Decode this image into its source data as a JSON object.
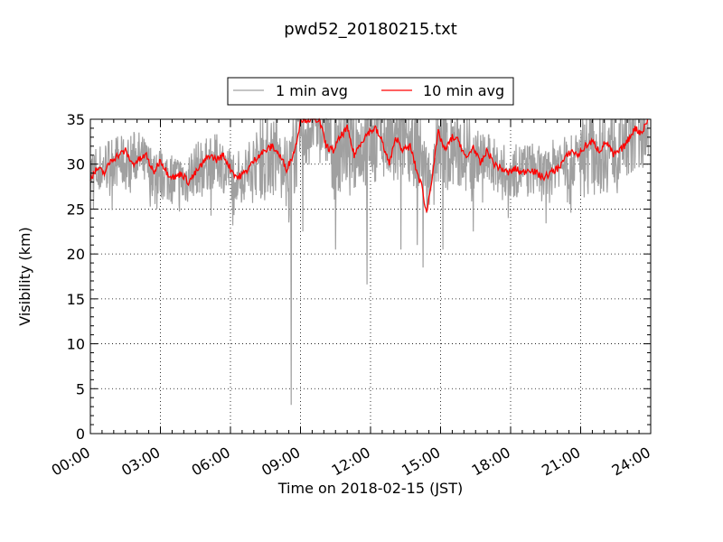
{
  "chart_data": {
    "type": "line",
    "title": "pwd52_20180215.txt",
    "xlabel": "Time on 2018-02-15 (JST)",
    "ylabel": "Visibility (km)",
    "x_unit": "hours",
    "xlim": [
      0,
      24
    ],
    "ylim": [
      0,
      35
    ],
    "x_ticks": [
      0,
      3,
      6,
      9,
      12,
      15,
      18,
      21,
      24
    ],
    "x_tick_labels": [
      "00:00",
      "03:00",
      "06:00",
      "09:00",
      "12:00",
      "15:00",
      "18:00",
      "21:00",
      "24:00"
    ],
    "y_ticks": [
      0,
      5,
      10,
      15,
      20,
      25,
      30,
      35
    ],
    "y_tick_labels": [
      "0",
      "5",
      "10",
      "15",
      "20",
      "25",
      "30",
      "35"
    ],
    "grid": true,
    "grid_style": "dotted",
    "legend_position": "top-center",
    "series": [
      {
        "name": "1 min avg",
        "color": "#a0a0a0",
        "style": "noisy",
        "x": [
          0.0,
          0.5,
          1.0,
          1.5,
          2.0,
          2.5,
          3.0,
          3.5,
          4.0,
          4.5,
          5.0,
          5.5,
          6.0,
          6.5,
          7.0,
          7.5,
          8.0,
          8.5,
          9.0,
          9.5,
          10.0,
          10.5,
          11.0,
          11.5,
          12.0,
          12.5,
          13.0,
          13.5,
          14.0,
          14.5,
          15.0,
          15.5,
          16.0,
          16.5,
          17.0,
          17.5,
          18.0,
          18.5,
          19.0,
          19.5,
          20.0,
          20.5,
          21.0,
          21.5,
          22.0,
          22.5,
          23.0,
          23.5,
          23.9
        ],
        "y": [
          29.0,
          29.5,
          30.5,
          30.0,
          31.0,
          29.5,
          29.0,
          28.5,
          28.0,
          29.5,
          30.0,
          30.5,
          29.0,
          28.5,
          30.5,
          31.5,
          31.0,
          30.0,
          33.0,
          35.0,
          35.0,
          31.5,
          32.5,
          32.0,
          32.5,
          33.5,
          31.5,
          33.5,
          32.0,
          29.0,
          32.5,
          31.5,
          32.0,
          31.0,
          30.5,
          29.5,
          29.0,
          29.5,
          29.5,
          28.5,
          30.5,
          30.0,
          31.0,
          32.0,
          31.5,
          32.5,
          33.5,
          34.5,
          35.0
        ],
        "dips": [
          [
            8.6,
            3.2
          ],
          [
            11.85,
            16.6
          ],
          [
            14.25,
            18.5
          ],
          [
            14.0,
            21.0
          ],
          [
            13.3,
            20.5
          ],
          [
            10.5,
            20.5
          ],
          [
            15.1,
            20.5
          ],
          [
            16.4,
            22.5
          ],
          [
            9.1,
            22.5
          ],
          [
            8.5,
            23.5
          ],
          [
            17.9,
            24.0
          ]
        ]
      },
      {
        "name": "10 min avg",
        "color": "#ff0000",
        "style": "smooth",
        "x": [
          0.0,
          0.3,
          0.6,
          0.9,
          1.2,
          1.5,
          1.8,
          2.1,
          2.4,
          2.7,
          3.0,
          3.3,
          3.6,
          3.9,
          4.2,
          4.5,
          4.8,
          5.1,
          5.4,
          5.7,
          6.0,
          6.3,
          6.6,
          6.9,
          7.2,
          7.5,
          7.8,
          8.1,
          8.4,
          8.6,
          8.8,
          9.0,
          9.2,
          9.5,
          9.8,
          10.1,
          10.4,
          10.7,
          11.0,
          11.3,
          11.6,
          11.9,
          12.2,
          12.5,
          12.8,
          13.1,
          13.4,
          13.7,
          14.0,
          14.2,
          14.4,
          14.6,
          14.9,
          15.2,
          15.5,
          15.8,
          16.1,
          16.4,
          16.7,
          17.0,
          17.3,
          17.6,
          17.9,
          18.2,
          18.5,
          18.8,
          19.1,
          19.4,
          19.7,
          20.0,
          20.3,
          20.6,
          20.9,
          21.2,
          21.5,
          21.8,
          22.1,
          22.4,
          22.7,
          23.0,
          23.3,
          23.6,
          23.9
        ],
        "y": [
          28.5,
          29.5,
          29.0,
          30.5,
          31.0,
          31.5,
          30.0,
          30.5,
          31.0,
          29.0,
          30.5,
          29.0,
          28.5,
          29.0,
          28.0,
          29.0,
          30.0,
          31.0,
          30.5,
          31.0,
          29.5,
          28.5,
          29.0,
          30.0,
          31.0,
          31.5,
          32.0,
          31.0,
          29.5,
          30.5,
          32.0,
          35.0,
          35.0,
          35.0,
          35.0,
          32.0,
          31.5,
          33.0,
          34.0,
          31.0,
          32.5,
          33.5,
          34.0,
          32.5,
          30.0,
          33.0,
          31.5,
          32.0,
          29.0,
          27.5,
          24.5,
          28.0,
          33.5,
          31.5,
          33.0,
          32.5,
          30.5,
          32.0,
          30.0,
          31.5,
          30.0,
          29.5,
          29.0,
          29.5,
          29.0,
          29.5,
          29.0,
          28.5,
          29.0,
          29.5,
          30.5,
          31.5,
          31.0,
          32.0,
          32.5,
          31.5,
          32.5,
          31.0,
          31.5,
          32.5,
          34.0,
          33.5,
          35.0
        ]
      }
    ]
  }
}
